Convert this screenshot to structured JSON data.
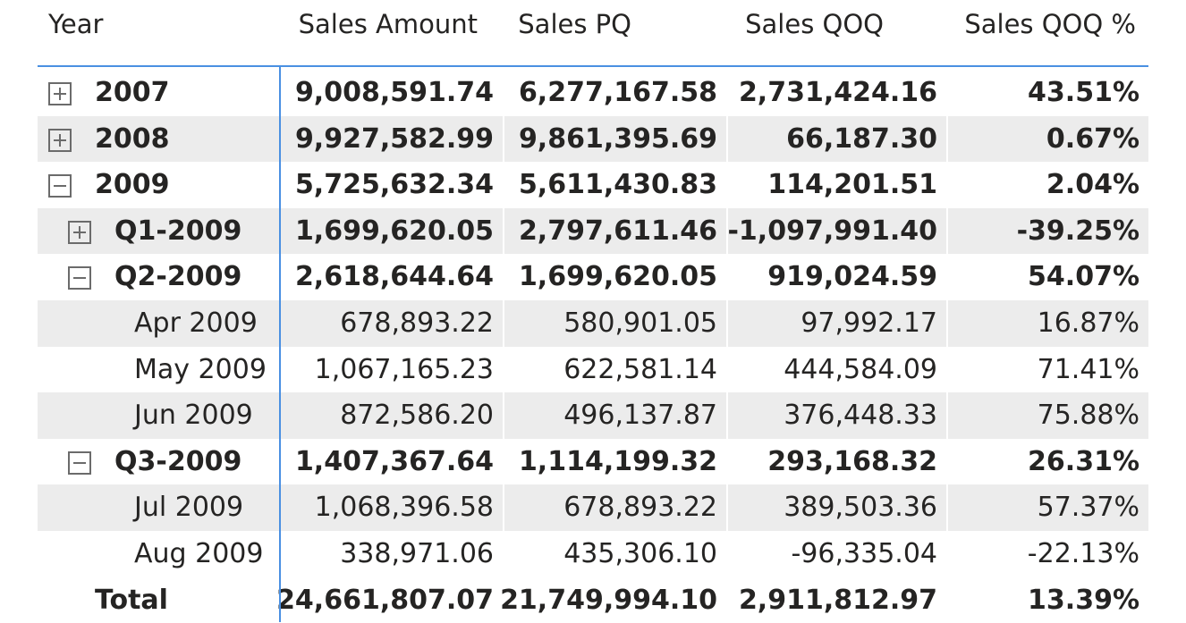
{
  "columns": [
    "Year",
    "Sales Amount",
    "Sales PQ",
    "Sales QOQ",
    "Sales QOQ %"
  ],
  "rows": [
    {
      "label": "2007",
      "level": 0,
      "expander": "plus",
      "bold": true,
      "shaded": false,
      "values": [
        "9,008,591.74",
        "6,277,167.58",
        "2,731,424.16",
        "43.51%"
      ]
    },
    {
      "label": "2008",
      "level": 0,
      "expander": "plus",
      "bold": true,
      "shaded": true,
      "values": [
        "9,927,582.99",
        "9,861,395.69",
        "66,187.30",
        "0.67%"
      ]
    },
    {
      "label": "2009",
      "level": 0,
      "expander": "minus",
      "bold": true,
      "shaded": false,
      "values": [
        "5,725,632.34",
        "5,611,430.83",
        "114,201.51",
        "2.04%"
      ]
    },
    {
      "label": "Q1-2009",
      "level": 1,
      "expander": "plus",
      "bold": true,
      "shaded": true,
      "values": [
        "1,699,620.05",
        "2,797,611.46",
        "-1,097,991.40",
        "-39.25%"
      ]
    },
    {
      "label": "Q2-2009",
      "level": 1,
      "expander": "minus",
      "bold": true,
      "shaded": false,
      "values": [
        "2,618,644.64",
        "1,699,620.05",
        "919,024.59",
        "54.07%"
      ]
    },
    {
      "label": "Apr 2009",
      "level": 2,
      "expander": "none",
      "bold": false,
      "shaded": true,
      "values": [
        "678,893.22",
        "580,901.05",
        "97,992.17",
        "16.87%"
      ]
    },
    {
      "label": "May 2009",
      "level": 2,
      "expander": "none",
      "bold": false,
      "shaded": false,
      "values": [
        "1,067,165.23",
        "622,581.14",
        "444,584.09",
        "71.41%"
      ]
    },
    {
      "label": "Jun 2009",
      "level": 2,
      "expander": "none",
      "bold": false,
      "shaded": true,
      "values": [
        "872,586.20",
        "496,137.87",
        "376,448.33",
        "75.88%"
      ]
    },
    {
      "label": "Q3-2009",
      "level": 1,
      "expander": "minus",
      "bold": true,
      "shaded": false,
      "values": [
        "1,407,367.64",
        "1,114,199.32",
        "293,168.32",
        "26.31%"
      ]
    },
    {
      "label": "Jul 2009",
      "level": 2,
      "expander": "none",
      "bold": false,
      "shaded": true,
      "values": [
        "1,068,396.58",
        "678,893.22",
        "389,503.36",
        "57.37%"
      ]
    },
    {
      "label": "Aug 2009",
      "level": 2,
      "expander": "none",
      "bold": false,
      "shaded": false,
      "values": [
        "338,971.06",
        "435,306.10",
        "-96,335.04",
        "-22.13%"
      ]
    },
    {
      "label": "Total",
      "level": -1,
      "expander": "none",
      "bold": true,
      "shaded": false,
      "values": [
        "24,661,807.07",
        "21,749,994.10",
        "2,911,812.97",
        "13.39%"
      ]
    }
  ],
  "colors": {
    "accent": "#4a90e2",
    "shade": "#ececec",
    "text": "#252423",
    "expander": "#6b6b6b"
  },
  "icons": {
    "expand": "plus-square-icon",
    "collapse": "minus-square-icon"
  }
}
